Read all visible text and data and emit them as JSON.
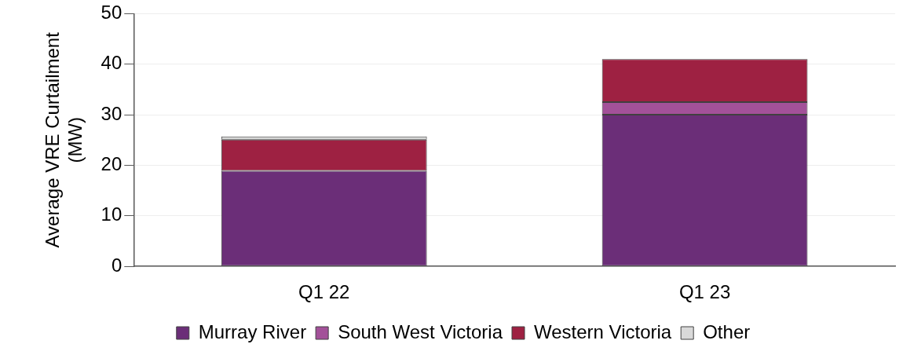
{
  "chart_data": {
    "type": "bar",
    "stacked": true,
    "ylabel": "Average VRE Curtailment (MW)",
    "categories": [
      "Q1 22",
      "Q1 23"
    ],
    "series": [
      {
        "name": "Murray River",
        "color": "#6b2e78",
        "values": [
          18.9,
          30.0
        ]
      },
      {
        "name": "South West Victoria",
        "color": "#a35199",
        "values": [
          0,
          2.5
        ]
      },
      {
        "name": "Western Victoria",
        "color": "#9e2142",
        "values": [
          6.2,
          8.5
        ]
      },
      {
        "name": "Other",
        "color": "#d9d9d9",
        "values": [
          0.6,
          0
        ]
      }
    ],
    "ylim": [
      0,
      50
    ],
    "yticks": [
      0,
      10,
      20,
      30,
      40,
      50
    ],
    "grid": "y",
    "legend": "bottom"
  }
}
